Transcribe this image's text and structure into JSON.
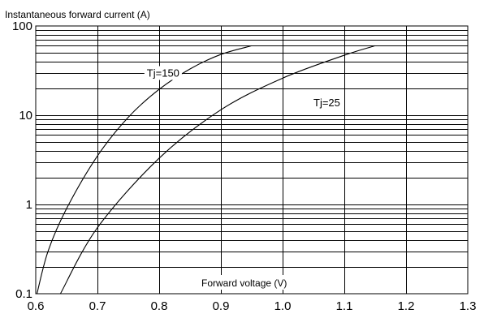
{
  "chart_data": {
    "type": "line",
    "title": "",
    "ylabel": "Instantaneous forward current (A)",
    "xlabel": "Forward voltage (V)",
    "x_scale": "linear",
    "y_scale": "log",
    "xlim": [
      0.6,
      1.3
    ],
    "ylim": [
      0.1,
      100
    ],
    "x_ticks": [
      0.6,
      0.7,
      0.8,
      0.9,
      1.0,
      1.1,
      1.2,
      1.3
    ],
    "x_tick_labels": [
      "0.6",
      "0.7",
      "0.8",
      "0.9",
      "1.0",
      "1.1",
      "1.2",
      "1.3"
    ],
    "y_ticks": [
      0.1,
      1,
      10,
      100
    ],
    "y_tick_labels": [
      "0.1",
      "1",
      "10",
      "100"
    ],
    "grid": true,
    "series": [
      {
        "name": "Tj=150",
        "x": [
          0.602,
          0.62,
          0.65,
          0.7,
          0.75,
          0.8,
          0.85,
          0.9,
          0.95
        ],
        "y": [
          0.1,
          0.3,
          0.9,
          3.5,
          9.5,
          19.5,
          33,
          48,
          60
        ]
      },
      {
        "name": "Tj=25",
        "x": [
          0.64,
          0.7,
          0.8,
          0.9,
          1.0,
          1.1,
          1.15
        ],
        "y": [
          0.1,
          0.55,
          3.3,
          11.5,
          26,
          47,
          60
        ]
      }
    ],
    "annotations": [
      {
        "text": "Tj=150",
        "x": 0.78,
        "y": 30
      },
      {
        "text": "Tj=25",
        "x": 1.05,
        "y": 14
      }
    ]
  }
}
